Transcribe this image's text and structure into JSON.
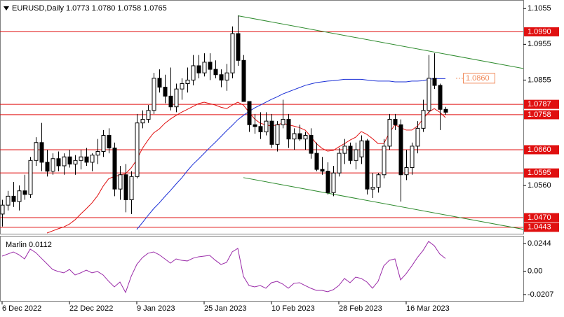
{
  "chart_data": [
    {
      "type": "candlestick",
      "title": "EURUSD,Daily  1.0773 1.0780 1.0758 1.0765",
      "categories": [
        "6 Dec 2022",
        null,
        null,
        null,
        null,
        null,
        null,
        null,
        null,
        null,
        null,
        null,
        "22 Dec 2022",
        null,
        null,
        null,
        null,
        null,
        null,
        null,
        null,
        null,
        null,
        null,
        "9 Jan 2023",
        null,
        null,
        null,
        null,
        null,
        null,
        null,
        null,
        null,
        null,
        null,
        "25 Jan 2023",
        null,
        null,
        null,
        null,
        null,
        null,
        null,
        null,
        null,
        null,
        null,
        "10 Feb 2023",
        null,
        null,
        null,
        null,
        null,
        null,
        null,
        null,
        null,
        null,
        null,
        "28 Feb 2023",
        null,
        null,
        null,
        null,
        null,
        null,
        null,
        null,
        null,
        null,
        null,
        "16 Mar 2023",
        null,
        null,
        null,
        null,
        null,
        null,
        null
      ],
      "open": [
        1.048,
        1.0505,
        1.053,
        1.0515,
        1.0545,
        1.0535,
        1.063,
        1.068,
        1.0625,
        1.06,
        1.0635,
        1.0615,
        1.064,
        1.062,
        1.063,
        1.064,
        1.0625,
        1.0645,
        1.0655,
        1.07,
        1.0665,
        1.055,
        1.059,
        1.052,
        1.0585,
        1.0735,
        1.0745,
        1.077,
        1.086,
        1.0835,
        1.081,
        1.078,
        1.083,
        1.0845,
        1.0855,
        1.0895,
        1.0875,
        1.0905,
        1.0885,
        1.087,
        1.0855,
        1.0875,
        1.0985,
        1.091,
        1.0795,
        1.073,
        1.0725,
        1.071,
        1.074,
        1.0675,
        1.073,
        1.0745,
        1.069,
        1.0705,
        1.069,
        1.07,
        1.065,
        1.0605,
        1.06,
        1.054,
        1.0595,
        1.065,
        1.067,
        1.063,
        1.064,
        1.0685,
        1.055,
        1.0555,
        1.059,
        1.067,
        1.0745,
        1.073,
        1.059,
        1.061,
        1.067,
        1.072,
        1.077,
        1.086,
        1.084,
        1.0773
      ],
      "high": [
        1.052,
        1.0545,
        1.057,
        1.056,
        1.059,
        1.064,
        1.0695,
        1.0735,
        1.066,
        1.065,
        1.0655,
        1.065,
        1.066,
        1.0645,
        1.066,
        1.0665,
        1.065,
        1.069,
        1.0715,
        1.072,
        1.068,
        1.0615,
        1.062,
        1.06,
        1.076,
        1.077,
        1.0785,
        1.0875,
        1.0885,
        1.087,
        1.089,
        1.0845,
        1.086,
        1.089,
        1.0925,
        1.0925,
        1.093,
        1.093,
        1.091,
        1.0885,
        1.09,
        1.1005,
        1.1035,
        1.0925,
        1.0795,
        1.076,
        1.0765,
        1.0765,
        1.076,
        1.074,
        1.08,
        1.076,
        1.072,
        1.073,
        1.071,
        1.072,
        1.068,
        1.064,
        1.0625,
        1.0615,
        1.0665,
        1.069,
        1.068,
        1.068,
        1.07,
        1.069,
        1.0595,
        1.0595,
        1.069,
        1.076,
        1.076,
        1.0745,
        1.066,
        1.068,
        1.074,
        1.08,
        1.0925,
        1.093,
        1.0845,
        1.078
      ],
      "low": [
        1.0445,
        1.049,
        1.05,
        1.049,
        1.052,
        1.0525,
        1.0615,
        1.06,
        1.0585,
        1.059,
        1.06,
        1.059,
        1.061,
        1.059,
        1.0605,
        1.0615,
        1.06,
        1.062,
        1.064,
        1.065,
        1.053,
        1.052,
        1.0485,
        1.048,
        1.058,
        1.072,
        1.0735,
        1.076,
        1.082,
        1.079,
        1.077,
        1.0765,
        1.08,
        1.082,
        1.084,
        1.086,
        1.0865,
        1.0855,
        1.086,
        1.0835,
        1.0825,
        1.086,
        1.0895,
        1.0795,
        1.071,
        1.0705,
        1.069,
        1.07,
        1.0665,
        1.0655,
        1.072,
        1.0665,
        1.066,
        1.0685,
        1.066,
        1.0635,
        1.06,
        1.059,
        1.0535,
        1.053,
        1.0585,
        1.062,
        1.062,
        1.0605,
        1.062,
        1.0535,
        1.0525,
        1.054,
        1.058,
        1.066,
        1.0715,
        1.0515,
        1.0575,
        1.059,
        1.065,
        1.071,
        1.076,
        1.083,
        1.0715,
        1.0758
      ],
      "close": [
        1.0505,
        1.053,
        1.0515,
        1.0545,
        1.0535,
        1.063,
        1.068,
        1.0625,
        1.06,
        1.0635,
        1.0615,
        1.064,
        1.062,
        1.063,
        1.064,
        1.0625,
        1.0645,
        1.0655,
        1.07,
        1.0665,
        1.055,
        1.059,
        1.052,
        1.0585,
        1.0735,
        1.0745,
        1.077,
        1.086,
        1.0835,
        1.081,
        1.078,
        1.083,
        1.0845,
        1.0855,
        1.0895,
        1.0875,
        1.0905,
        1.0885,
        1.087,
        1.0855,
        1.0875,
        1.0985,
        1.091,
        1.0795,
        1.073,
        1.0725,
        1.071,
        1.074,
        1.0675,
        1.073,
        1.0745,
        1.069,
        1.0705,
        1.069,
        1.07,
        1.065,
        1.0605,
        1.06,
        1.054,
        1.0595,
        1.065,
        1.067,
        1.063,
        1.066,
        1.0685,
        1.055,
        1.0555,
        1.059,
        1.067,
        1.0745,
        1.073,
        1.059,
        1.061,
        1.067,
        1.072,
        1.077,
        1.086,
        1.084,
        1.0773,
        1.0765
      ],
      "series": [
        {
          "color": "#e01010",
          "values": [
            null,
            null,
            null,
            null,
            null,
            null,
            null,
            null,
            1.0427,
            1.0433,
            1.0439,
            1.0444,
            1.0452,
            1.0464,
            1.048,
            1.0495,
            1.0511,
            1.0531,
            1.0558,
            1.0579,
            1.0585,
            1.0589,
            1.0593,
            1.0609,
            1.0632,
            1.0664,
            1.0687,
            1.0707,
            1.0718,
            1.0734,
            1.0746,
            1.0756,
            1.0765,
            1.0773,
            1.0781,
            1.0789,
            1.0793,
            1.0789,
            1.0785,
            1.0779,
            1.0775,
            1.0785,
            1.0793,
            1.0785,
            1.0765,
            1.0746,
            1.0734,
            1.073,
            1.0726,
            1.073,
            1.0734,
            1.073,
            1.0726,
            1.0722,
            1.0715,
            1.0697,
            1.0677,
            1.0664,
            1.0656,
            1.0658,
            1.0668,
            1.0677,
            1.0687,
            1.0695,
            1.0711,
            1.0703,
            1.0691,
            1.0677,
            1.0677,
            1.0707,
            1.073,
            1.0722,
            1.0715,
            1.0715,
            1.0726,
            1.0746,
            1.0765,
            1.0775,
            1.0765,
            1.075
          ]
        },
        {
          "color": "#1a2fd6",
          "values": [
            null,
            null,
            null,
            null,
            null,
            null,
            null,
            null,
            null,
            null,
            null,
            null,
            null,
            null,
            null,
            null,
            null,
            null,
            null,
            null,
            null,
            null,
            null,
            null,
            1.0437,
            1.0456,
            1.0476,
            1.0495,
            1.0511,
            1.0529,
            1.0546,
            1.0564,
            1.0581,
            1.0601,
            1.0619,
            1.0634,
            1.065,
            1.0666,
            1.0681,
            1.0697,
            1.0713,
            1.0728,
            1.0744,
            1.0756,
            1.0767,
            1.0777,
            1.0785,
            1.0793,
            1.0801,
            1.0808,
            1.0816,
            1.0822,
            1.0828,
            1.0834,
            1.084,
            1.0844,
            1.0848,
            1.085,
            1.0852,
            1.0853,
            1.0855,
            1.0857,
            1.0857,
            1.0857,
            1.0857,
            1.0855,
            1.0853,
            1.0852,
            1.0852,
            1.0852,
            1.085,
            1.085,
            1.085,
            1.0852,
            1.0852,
            1.0853,
            1.0857,
            1.0859,
            1.0859,
            1.0859
          ]
        }
      ],
      "trendlines": [
        {
          "x": [
            42,
            93
          ],
          "y": [
            1.1035,
            1.0887
          ]
        },
        {
          "x": [
            43,
            93
          ],
          "y": [
            1.0582,
            1.0437
          ]
        }
      ],
      "trendline_color": "#2e8b2e",
      "levels": [
        {
          "value": 1.099,
          "label": "1.0990"
        },
        1.0787,
        1.0758,
        {
          "value": 1.066,
          "label": "1.0660"
        },
        1.0595,
        {
          "value": 1.047,
          "label": "1.0470"
        },
        1.0443
      ],
      "level_color": "#e01010",
      "price_label": {
        "value": 1.086,
        "label": "1.0860"
      },
      "price_label_color": "#f08a5a",
      "ylim": [
        1.0425,
        1.1079
      ],
      "yticks": [
        1.1055,
        1.0955,
        1.0855,
        {
          "value": 1.056,
          "label": "1.0560"
        }
      ]
    },
    {
      "type": "line",
      "title": "Marlin 0.0112",
      "color": "#9a2aa8",
      "values": [
        0.0133,
        0.0151,
        0.017,
        0.0145,
        0.0108,
        0.0195,
        0.0164,
        0.0114,
        0.0065,
        0.0015,
        -0.0003,
        -0.0015,
        0.0015,
        -0.0034,
        -0.0015,
        0.0009,
        -0.0015,
        -0.0003,
        -0.0034,
        -0.009,
        -0.0139,
        -0.0096,
        -0.0188,
        -0.0046,
        0.0059,
        0.012,
        0.0158,
        0.017,
        0.0145,
        0.0108,
        0.0071,
        0.0108,
        0.0096,
        0.009,
        0.0114,
        0.0127,
        0.0133,
        0.0139,
        0.0096,
        0.0059,
        0.0077,
        0.017,
        0.0201,
        -0.0046,
        -0.0127,
        -0.0139,
        -0.0127,
        -0.0151,
        -0.0102,
        -0.009,
        -0.0114,
        -0.0151,
        -0.0108,
        -0.0102,
        -0.0127,
        -0.0151,
        -0.017,
        -0.017,
        -0.0182,
        -0.0164,
        -0.0127,
        -0.0065,
        -0.0102,
        -0.0053,
        -0.0065,
        -0.0096,
        -0.0151,
        -0.009,
        0.0046,
        0.0096,
        0.0108,
        -0.0077,
        -0.0022,
        0.0046,
        0.012,
        0.0182,
        0.0263,
        0.0225,
        0.0151,
        0.0112
      ],
      "ylim": [
        -0.0263,
        0.0306
      ],
      "yticks": [
        0.0244,
        {
          "value": 0,
          "label": "0.00"
        },
        -0.0207
      ]
    }
  ]
}
